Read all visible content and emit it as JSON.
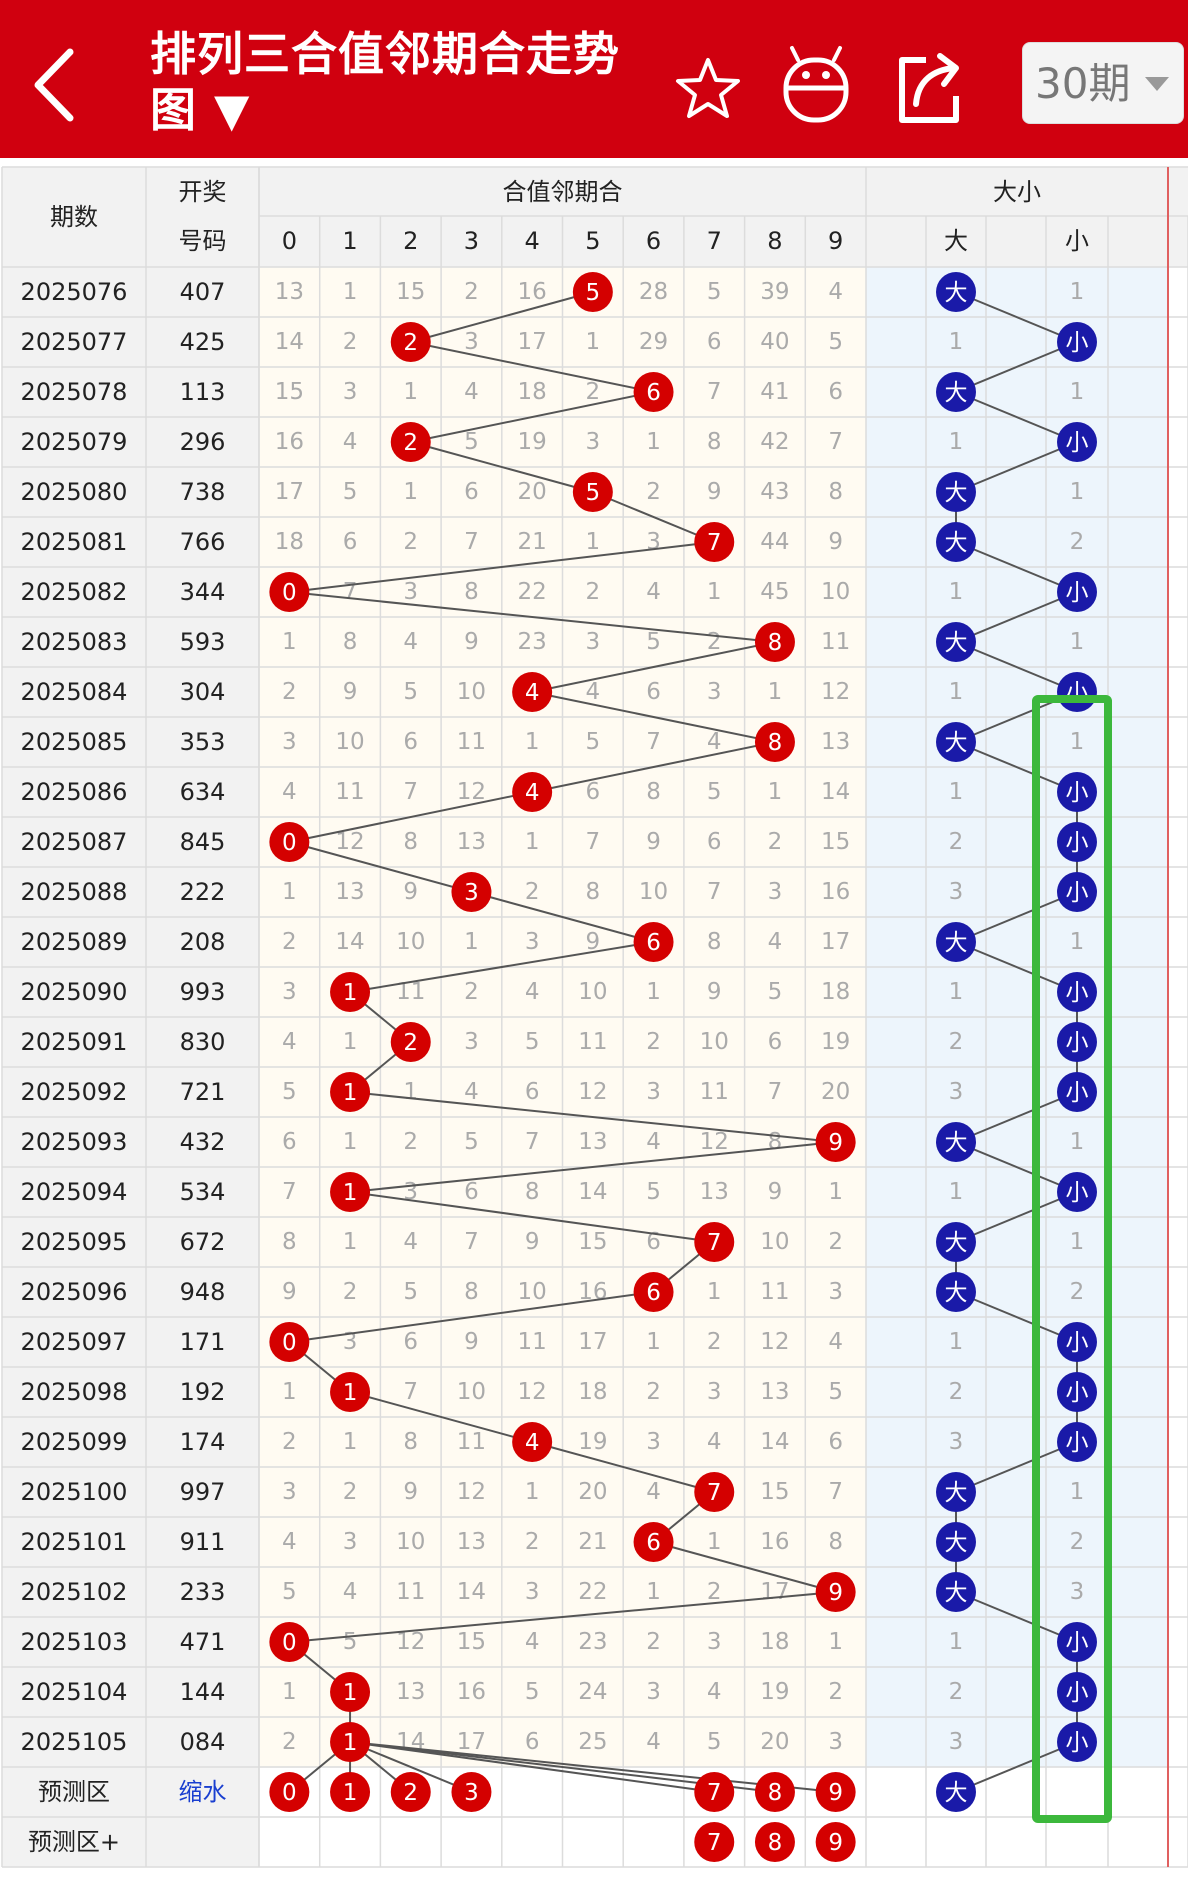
{
  "header": {
    "title": "排列三合值邻期合走势图 ▼",
    "period_selector": "30期",
    "icons": [
      "back-arrow-icon",
      "star-icon",
      "android-icon",
      "share-icon",
      "chevron-down-icon"
    ],
    "background_color": "#d0000f"
  },
  "table": {
    "col_issue": "期数",
    "col_number_line1": "开奖",
    "col_number_line2": "号码",
    "group_sum": "合值邻期合",
    "group_size": "大小",
    "digits": [
      "0",
      "1",
      "2",
      "3",
      "4",
      "5",
      "6",
      "7",
      "8",
      "9"
    ],
    "size_headers": [
      "大",
      "",
      "小"
    ],
    "big_label": "大",
    "small_label": "小",
    "rows": [
      {
        "issue": "2025076",
        "number": "407",
        "sum": 5,
        "cells": [
          13,
          1,
          15,
          2,
          16,
          null,
          28,
          5,
          39,
          4
        ],
        "size": "大",
        "big_miss": null,
        "small_miss": 1
      },
      {
        "issue": "2025077",
        "number": "425",
        "sum": 2,
        "cells": [
          14,
          2,
          null,
          3,
          17,
          1,
          29,
          6,
          40,
          5
        ],
        "size": "小",
        "big_miss": 1,
        "small_miss": null
      },
      {
        "issue": "2025078",
        "number": "113",
        "sum": 6,
        "cells": [
          15,
          3,
          1,
          4,
          18,
          2,
          null,
          7,
          41,
          6
        ],
        "size": "大",
        "big_miss": null,
        "small_miss": 1
      },
      {
        "issue": "2025079",
        "number": "296",
        "sum": 2,
        "cells": [
          16,
          4,
          null,
          5,
          19,
          3,
          1,
          8,
          42,
          7
        ],
        "size": "小",
        "big_miss": 1,
        "small_miss": null
      },
      {
        "issue": "2025080",
        "number": "738",
        "sum": 5,
        "cells": [
          17,
          5,
          1,
          6,
          20,
          null,
          2,
          9,
          43,
          8
        ],
        "size": "大",
        "big_miss": null,
        "small_miss": 1
      },
      {
        "issue": "2025081",
        "number": "766",
        "sum": 7,
        "cells": [
          18,
          6,
          2,
          7,
          21,
          1,
          3,
          null,
          44,
          9
        ],
        "size": "大",
        "big_miss": null,
        "small_miss": 2
      },
      {
        "issue": "2025082",
        "number": "344",
        "sum": 0,
        "cells": [
          null,
          7,
          3,
          8,
          22,
          2,
          4,
          1,
          45,
          10
        ],
        "size": "小",
        "big_miss": 1,
        "small_miss": null
      },
      {
        "issue": "2025083",
        "number": "593",
        "sum": 8,
        "cells": [
          1,
          8,
          4,
          9,
          23,
          3,
          5,
          2,
          null,
          11
        ],
        "size": "大",
        "big_miss": null,
        "small_miss": 1
      },
      {
        "issue": "2025084",
        "number": "304",
        "sum": 4,
        "cells": [
          2,
          9,
          5,
          10,
          null,
          4,
          6,
          3,
          1,
          12
        ],
        "size": "小",
        "big_miss": 1,
        "small_miss": null
      },
      {
        "issue": "2025085",
        "number": "353",
        "sum": 8,
        "cells": [
          3,
          10,
          6,
          11,
          1,
          5,
          7,
          4,
          null,
          13
        ],
        "size": "大",
        "big_miss": null,
        "small_miss": 1
      },
      {
        "issue": "2025086",
        "number": "634",
        "sum": 4,
        "cells": [
          4,
          11,
          7,
          12,
          null,
          6,
          8,
          5,
          1,
          14
        ],
        "size": "小",
        "big_miss": 1,
        "small_miss": null
      },
      {
        "issue": "2025087",
        "number": "845",
        "sum": 0,
        "cells": [
          null,
          12,
          8,
          13,
          1,
          7,
          9,
          6,
          2,
          15
        ],
        "size": "小",
        "big_miss": 2,
        "small_miss": null
      },
      {
        "issue": "2025088",
        "number": "222",
        "sum": 3,
        "cells": [
          1,
          13,
          9,
          null,
          2,
          8,
          10,
          7,
          3,
          16
        ],
        "size": "小",
        "big_miss": 3,
        "small_miss": null
      },
      {
        "issue": "2025089",
        "number": "208",
        "sum": 6,
        "cells": [
          2,
          14,
          10,
          1,
          3,
          9,
          null,
          8,
          4,
          17
        ],
        "size": "大",
        "big_miss": null,
        "small_miss": 1
      },
      {
        "issue": "2025090",
        "number": "993",
        "sum": 1,
        "cells": [
          3,
          null,
          11,
          2,
          4,
          10,
          1,
          9,
          5,
          18
        ],
        "size": "小",
        "big_miss": 1,
        "small_miss": null
      },
      {
        "issue": "2025091",
        "number": "830",
        "sum": 2,
        "cells": [
          4,
          1,
          null,
          3,
          5,
          11,
          2,
          10,
          6,
          19
        ],
        "size": "小",
        "big_miss": 2,
        "small_miss": null
      },
      {
        "issue": "2025092",
        "number": "721",
        "sum": 1,
        "cells": [
          5,
          null,
          1,
          4,
          6,
          12,
          3,
          11,
          7,
          20
        ],
        "size": "小",
        "big_miss": 3,
        "small_miss": null
      },
      {
        "issue": "2025093",
        "number": "432",
        "sum": 9,
        "cells": [
          6,
          1,
          2,
          5,
          7,
          13,
          4,
          12,
          8,
          null
        ],
        "size": "大",
        "big_miss": null,
        "small_miss": 1
      },
      {
        "issue": "2025094",
        "number": "534",
        "sum": 1,
        "cells": [
          7,
          null,
          3,
          6,
          8,
          14,
          5,
          13,
          9,
          1
        ],
        "size": "小",
        "big_miss": 1,
        "small_miss": null
      },
      {
        "issue": "2025095",
        "number": "672",
        "sum": 7,
        "cells": [
          8,
          1,
          4,
          7,
          9,
          15,
          6,
          null,
          10,
          2
        ],
        "size": "大",
        "big_miss": null,
        "small_miss": 1
      },
      {
        "issue": "2025096",
        "number": "948",
        "sum": 6,
        "cells": [
          9,
          2,
          5,
          8,
          10,
          16,
          null,
          1,
          11,
          3
        ],
        "size": "大",
        "big_miss": null,
        "small_miss": 2
      },
      {
        "issue": "2025097",
        "number": "171",
        "sum": 0,
        "cells": [
          null,
          3,
          6,
          9,
          11,
          17,
          1,
          2,
          12,
          4
        ],
        "size": "小",
        "big_miss": 1,
        "small_miss": null
      },
      {
        "issue": "2025098",
        "number": "192",
        "sum": 1,
        "cells": [
          1,
          null,
          7,
          10,
          12,
          18,
          2,
          3,
          13,
          5
        ],
        "size": "小",
        "big_miss": 2,
        "small_miss": null
      },
      {
        "issue": "2025099",
        "number": "174",
        "sum": 4,
        "cells": [
          2,
          1,
          8,
          11,
          null,
          19,
          3,
          4,
          14,
          6
        ],
        "size": "小",
        "big_miss": 3,
        "small_miss": null
      },
      {
        "issue": "2025100",
        "number": "997",
        "sum": 7,
        "cells": [
          3,
          2,
          9,
          12,
          1,
          20,
          4,
          null,
          15,
          7
        ],
        "size": "大",
        "big_miss": null,
        "small_miss": 1
      },
      {
        "issue": "2025101",
        "number": "911",
        "sum": 6,
        "cells": [
          4,
          3,
          10,
          13,
          2,
          21,
          null,
          1,
          16,
          8
        ],
        "size": "大",
        "big_miss": null,
        "small_miss": 2
      },
      {
        "issue": "2025102",
        "number": "233",
        "sum": 9,
        "cells": [
          5,
          4,
          11,
          14,
          3,
          22,
          1,
          2,
          17,
          null
        ],
        "size": "大",
        "big_miss": null,
        "small_miss": 3
      },
      {
        "issue": "2025103",
        "number": "471",
        "sum": 0,
        "cells": [
          null,
          5,
          12,
          15,
          4,
          23,
          2,
          3,
          18,
          1
        ],
        "size": "小",
        "big_miss": 1,
        "small_miss": null
      },
      {
        "issue": "2025104",
        "number": "144",
        "sum": 1,
        "cells": [
          1,
          null,
          13,
          16,
          5,
          24,
          3,
          4,
          19,
          2
        ],
        "size": "小",
        "big_miss": 2,
        "small_miss": null
      },
      {
        "issue": "2025105",
        "number": "084",
        "sum": 1,
        "cells": [
          2,
          null,
          14,
          17,
          6,
          25,
          4,
          5,
          20,
          3
        ],
        "size": "小",
        "big_miss": 3,
        "small_miss": null
      }
    ],
    "predict1": {
      "label": "预测区",
      "link": "缩水",
      "picks": [
        0,
        1,
        2,
        3,
        7,
        8,
        9
      ],
      "size": "大"
    },
    "predict2": {
      "label": "预测区+",
      "picks": [
        7,
        8,
        9
      ]
    }
  },
  "colors": {
    "red_ball": "#d40000",
    "blue_ball": "#1a1aa8",
    "sum_bg": "#fffbf2",
    "size_bg": "#edf5fc",
    "highlight": "#3cb83c"
  }
}
